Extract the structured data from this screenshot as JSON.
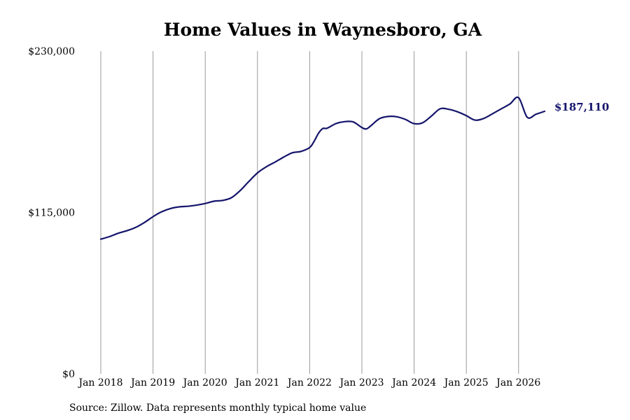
{
  "chart_data": {
    "type": "line",
    "title": "Home Values in Waynesboro, GA",
    "source": "Source: Zillow. Data represents monthly typical home value",
    "ylim": [
      0,
      230000
    ],
    "y_ticks": [
      "$0",
      "$115,000",
      "$230,000"
    ],
    "y_tick_values": [
      0,
      115000,
      230000
    ],
    "x_ticks": [
      "Jan 2018",
      "Jan 2019",
      "Jan 2020",
      "Jan 2021",
      "Jan 2022",
      "Jan 2023",
      "Jan 2024",
      "Jan 2025",
      "Jan 2026"
    ],
    "x_tick_values": [
      "2018-01",
      "2019-01",
      "2020-01",
      "2021-01",
      "2022-01",
      "2023-01",
      "2024-01",
      "2025-01",
      "2026-01"
    ],
    "x_range": [
      "2018-01",
      "2026-07"
    ],
    "grid": "vertical",
    "line_color": "#14146b",
    "end_label": "$187,110",
    "series": [
      {
        "x": [
          "2018-01",
          "2018-03",
          "2018-05",
          "2018-07",
          "2018-09",
          "2018-11",
          "2019-01",
          "2019-03",
          "2019-05",
          "2019-07",
          "2019-09",
          "2019-11",
          "2020-01",
          "2020-03",
          "2020-05",
          "2020-07",
          "2020-09",
          "2020-11",
          "2021-01",
          "2021-03",
          "2021-05",
          "2021-07",
          "2021-09",
          "2021-11",
          "2022-01",
          "2022-02",
          "2022-03",
          "2022-04",
          "2022-05",
          "2022-07",
          "2022-09",
          "2022-11",
          "2023-01",
          "2023-02",
          "2023-03",
          "2023-05",
          "2023-07",
          "2023-09",
          "2023-11",
          "2024-01",
          "2024-03",
          "2024-05",
          "2024-07",
          "2024-09",
          "2024-11",
          "2025-01",
          "2025-03",
          "2025-05",
          "2025-07",
          "2025-09",
          "2025-11",
          "2026-01",
          "2026-03",
          "2026-05",
          "2026-07"
        ],
        "values": [
          96000,
          97800,
          100200,
          102000,
          104300,
          107800,
          112000,
          115500,
          117800,
          119000,
          119400,
          120200,
          121400,
          123000,
          123600,
          125500,
          130500,
          137000,
          143200,
          147500,
          150800,
          154400,
          157500,
          158500,
          161300,
          165600,
          171300,
          174800,
          175000,
          178300,
          179700,
          179500,
          175500,
          174500,
          176600,
          181800,
          183400,
          183200,
          181300,
          178300,
          179000,
          183800,
          188900,
          188500,
          186700,
          184000,
          180800,
          182000,
          185300,
          188800,
          192300,
          196800,
          182800,
          185000,
          187110
        ]
      }
    ]
  }
}
